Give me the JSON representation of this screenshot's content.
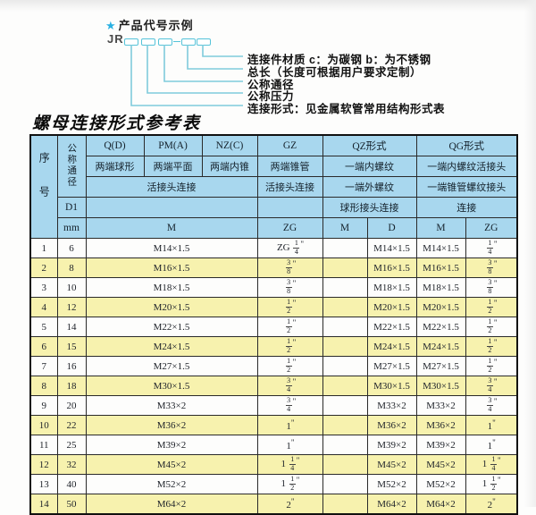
{
  "diagram": {
    "star": "★",
    "title": "产品代号示例",
    "prefix": "JR",
    "labels": [
      "连接件材质  c：为碳钢  b：为不锈钢",
      "总长（长度可根据用户要求定制）",
      "公称通径",
      "公称压力",
      "连接形式：见金属软管常用结构形式表"
    ]
  },
  "table_title": "螺母连接形式参考表",
  "table": {
    "header": {
      "seq": "序号",
      "dn": "公称通径",
      "d1": "D1",
      "mm": "mm",
      "union_label": "活接头连接",
      "m_label": "M",
      "groups": [
        {
          "code": "Q(D)",
          "desc": "两端球形"
        },
        {
          "code": "PM(A)",
          "desc": "两端平面"
        },
        {
          "code": "NZ(C)",
          "desc": "两端内锥"
        },
        {
          "code": "GZ",
          "desc": "两端锥管",
          "row3": "活接头连接",
          "sub": [
            "ZG"
          ]
        },
        {
          "code": "QZ形式",
          "desc": "一端内螺纹",
          "row3": "一端外螺纹",
          "row4": "球形接头连接",
          "sub": [
            "M",
            "D"
          ]
        },
        {
          "code": "QG形式",
          "desc": "一端内螺纹活接头",
          "row3": "一端锥管螺纹接头",
          "row4": "连接",
          "sub": [
            "M",
            "ZG"
          ]
        }
      ]
    },
    "rows": [
      [
        "1",
        "6",
        "M14×1.5",
        "ZG 1/4\"",
        "",
        "M14×1.5",
        "M14×1.5",
        "1/4\""
      ],
      [
        "2",
        "8",
        "M16×1.5",
        "3/8\"",
        "",
        "M16×1.5",
        "M16×1.5",
        "3/8\""
      ],
      [
        "3",
        "10",
        "M18×1.5",
        "3/8\"",
        "",
        "M18×1.5",
        "M18×1.5",
        "3/8\""
      ],
      [
        "4",
        "12",
        "M20×1.5",
        "1/2\"",
        "",
        "M20×1.5",
        "M20×1.5",
        "1/2\""
      ],
      [
        "5",
        "14",
        "M22×1.5",
        "1/2\"",
        "",
        "M22×1.5",
        "M22×1.5",
        "1/2\""
      ],
      [
        "6",
        "15",
        "M24×1.5",
        "1/2\"",
        "",
        "M24×1.5",
        "M24×1.5",
        "1/2\""
      ],
      [
        "7",
        "16",
        "M27×1.5",
        "1/2\"",
        "",
        "M27×1.5",
        "M27×1.5",
        "1/2\""
      ],
      [
        "8",
        "18",
        "M30×1.5",
        "3/4\"",
        "",
        "M30×1.5",
        "M30×1.5",
        "3/4\""
      ],
      [
        "9",
        "20",
        "M33×2",
        "3/4\"",
        "",
        "M33×2",
        "M33×2",
        "3/4\""
      ],
      [
        "10",
        "22",
        "M36×2",
        "1\"",
        "",
        "M36×2",
        "M36×2",
        "1\""
      ],
      [
        "11",
        "25",
        "M39×2",
        "1\"",
        "",
        "M39×2",
        "M39×2",
        "1\""
      ],
      [
        "12",
        "32",
        "M45×2",
        "1 1/4\"",
        "",
        "M45×2",
        "M45×2",
        "1 1/4\""
      ],
      [
        "13",
        "40",
        "M52×2",
        "1 1/2\"",
        "",
        "M52×2",
        "M52×2",
        "1 1/2\""
      ],
      [
        "14",
        "50",
        "M64×2",
        "2\"",
        "",
        "M64×2",
        "M64×2",
        "2\""
      ]
    ]
  },
  "colors": {
    "header_blue": "#a8d7ee",
    "band_yellow": "#f7f2ae",
    "connector_teal": "#7fcbdb",
    "box_cyan": "#55c3d9",
    "star_cyan": "#29b0e2",
    "border_dark": "#2a2a2a"
  }
}
